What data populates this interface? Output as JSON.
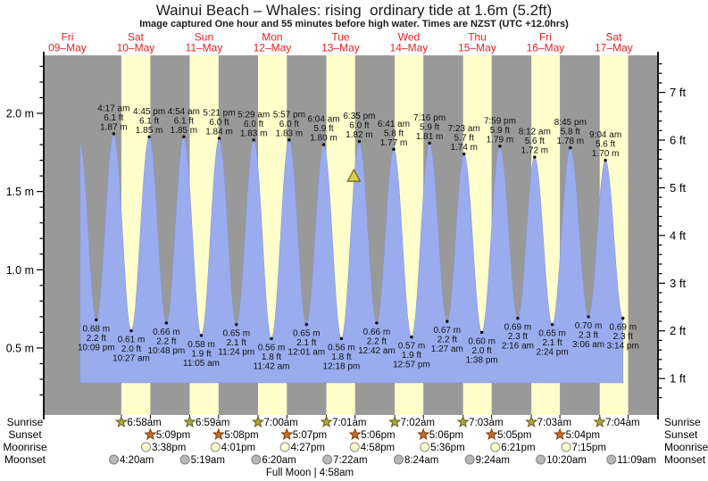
{
  "page": {
    "title": "Wainui Beach – Whales: rising  ordinary tide at 1.6m (5.2ft)",
    "subtitle": "Image captured One hour and 55 minutes before high water. Times are NZST (UTC +12.0hrs)"
  },
  "colors": {
    "plot_background": "#999999",
    "daylight_band": "#ffffcc",
    "tide_fill": "#9aacee",
    "tide_edge": "#8494d0",
    "day_label": "#e62222",
    "text": "#000000",
    "marker_fill": "#ddce4a",
    "marker_stroke": "#6b6414",
    "sunrise_star": "#b0a838",
    "sunrise_star_stroke": "#5f5a1e",
    "sunset_star": "#cc6e22",
    "sunset_star_stroke": "#7a3c10",
    "moonrise_circle": "#ffffcc",
    "moonrise_circle_stroke": "#8a8a8a",
    "moonset_circle": "#b8b8b8",
    "moonset_circle_stroke": "#808080"
  },
  "days": [
    {
      "weekday": "Fri",
      "date": "09–May"
    },
    {
      "weekday": "Sat",
      "date": "10–May"
    },
    {
      "weekday": "Sun",
      "date": "11–May"
    },
    {
      "weekday": "Mon",
      "date": "12–May"
    },
    {
      "weekday": "Tue",
      "date": "13–May"
    },
    {
      "weekday": "Wed",
      "date": "14–May"
    },
    {
      "weekday": "Thu",
      "date": "15–May"
    },
    {
      "weekday": "Fri",
      "date": "16–May"
    },
    {
      "weekday": "Sat",
      "date": "17–May"
    }
  ],
  "chart_data": {
    "type": "area",
    "title": "Wainui Beach – Whales: rising  ordinary tide at 1.6m (5.2ft)",
    "x_axis": {
      "days": 9,
      "first_day": "Fri 09-May",
      "last_day": "Sat 17-May"
    },
    "y_axis_left": {
      "unit": "m",
      "tick_labels": [
        "0.5 m",
        "1.0 m",
        "1.5 m",
        "2.0 m"
      ],
      "major_ticks_m": [
        0.5,
        1.0,
        1.5,
        2.0
      ],
      "minor_step_m": 0.1,
      "range_m": [
        0.07,
        2.37
      ]
    },
    "y_axis_right": {
      "unit": "ft",
      "tick_labels": [
        "1 ft",
        "2 ft",
        "3 ft",
        "4 ft",
        "5 ft",
        "6 ft",
        "7 ft"
      ],
      "major_ticks_ft": [
        1,
        2,
        3,
        4,
        5,
        6,
        7
      ],
      "minor_step_ft": 0.2
    },
    "tide_events": [
      {
        "kind": "high",
        "day": 0,
        "time": "4:30 pm",
        "m": "1.80",
        "ft": "5.9",
        "labeled": false
      },
      {
        "kind": "low",
        "day": 0,
        "time": "10:09 pm",
        "m": "0.68",
        "ft": "2.2"
      },
      {
        "kind": "high",
        "day": 1,
        "time": "4:17 am",
        "m": "1.87",
        "ft": "6.1"
      },
      {
        "kind": "low",
        "day": 1,
        "time": "10:27 am",
        "m": "0.61",
        "ft": "2.0"
      },
      {
        "kind": "high",
        "day": 1,
        "time": "4:45 pm",
        "m": "1.85",
        "ft": "6.1"
      },
      {
        "kind": "low",
        "day": 1,
        "time": "10:48 pm",
        "m": "0.66",
        "ft": "2.2"
      },
      {
        "kind": "high",
        "day": 2,
        "time": "4:54 am",
        "m": "1.85",
        "ft": "6.1"
      },
      {
        "kind": "low",
        "day": 2,
        "time": "11:05 am",
        "m": "0.58",
        "ft": "1.9"
      },
      {
        "kind": "high",
        "day": 2,
        "time": "5:21 pm",
        "m": "1.84",
        "ft": "6.0"
      },
      {
        "kind": "low",
        "day": 2,
        "time": "11:24 pm",
        "m": "0.65",
        "ft": "2.1"
      },
      {
        "kind": "high",
        "day": 3,
        "time": "5:29 am",
        "m": "1.83",
        "ft": "6.0"
      },
      {
        "kind": "low",
        "day": 3,
        "time": "11:42 am",
        "m": "0.56",
        "ft": "1.8"
      },
      {
        "kind": "high",
        "day": 3,
        "time": "5:57 pm",
        "m": "1.83",
        "ft": "6.0"
      },
      {
        "kind": "low",
        "day": 4,
        "time": "12:01 am",
        "m": "0.65",
        "ft": "2.1"
      },
      {
        "kind": "high",
        "day": 4,
        "time": "6:04 am",
        "m": "1.80",
        "ft": "5.9"
      },
      {
        "kind": "low",
        "day": 4,
        "time": "12:18 pm",
        "m": "0.56",
        "ft": "1.8"
      },
      {
        "kind": "high",
        "day": 4,
        "time": "6:35 pm",
        "m": "1.82",
        "ft": "6.0"
      },
      {
        "kind": "low",
        "day": 5,
        "time": "12:42 am",
        "m": "0.66",
        "ft": "2.2"
      },
      {
        "kind": "high",
        "day": 5,
        "time": "6:41 am",
        "m": "1.77",
        "ft": "5.8"
      },
      {
        "kind": "low",
        "day": 5,
        "time": "12:57 pm",
        "m": "0.57",
        "ft": "1.9"
      },
      {
        "kind": "high",
        "day": 5,
        "time": "7:16 pm",
        "m": "1.81",
        "ft": "5.9"
      },
      {
        "kind": "low",
        "day": 6,
        "time": "1:27 am",
        "m": "0.67",
        "ft": "2.2"
      },
      {
        "kind": "high",
        "day": 6,
        "time": "7:23 am",
        "m": "1.74",
        "ft": "5.7"
      },
      {
        "kind": "low",
        "day": 6,
        "time": "1:38 pm",
        "m": "0.60",
        "ft": "2.0"
      },
      {
        "kind": "high",
        "day": 6,
        "time": "7:59 pm",
        "m": "1.79",
        "ft": "5.9"
      },
      {
        "kind": "low",
        "day": 7,
        "time": "2:16 am",
        "m": "0.69",
        "ft": "2.3"
      },
      {
        "kind": "high",
        "day": 7,
        "time": "8:12 am",
        "m": "1.72",
        "ft": "5.6"
      },
      {
        "kind": "low",
        "day": 7,
        "time": "2:24 pm",
        "m": "0.65",
        "ft": "2.1"
      },
      {
        "kind": "high",
        "day": 7,
        "time": "8:45 pm",
        "m": "1.78",
        "ft": "5.8"
      },
      {
        "kind": "low",
        "day": 8,
        "time": "3:06 am",
        "m": "0.70",
        "ft": "2.3"
      },
      {
        "kind": "high",
        "day": 8,
        "time": "9:04 am",
        "m": "1.70",
        "ft": "5.6"
      },
      {
        "kind": "low",
        "day": 8,
        "time": "3:14 pm",
        "m": "0.69",
        "ft": "2.3"
      }
    ],
    "current_marker": {
      "day": 4,
      "time": "4:40 pm",
      "height_m": 1.6
    },
    "daylight_bands": [
      {
        "day": 1,
        "start": "6:58 am",
        "end": "5:09 pm"
      },
      {
        "day": 2,
        "start": "6:59 am",
        "end": "5:08 pm"
      },
      {
        "day": 3,
        "start": "7:00 am",
        "end": "5:07 pm"
      },
      {
        "day": 4,
        "start": "7:01 am",
        "end": "5:06 pm"
      },
      {
        "day": 5,
        "start": "7:02 am",
        "end": "5:06 pm"
      },
      {
        "day": 6,
        "start": "7:03 am",
        "end": "5:05 pm"
      },
      {
        "day": 7,
        "start": "7:03 am",
        "end": "5:04 pm"
      },
      {
        "day": 8,
        "start": "7:04 am",
        "end": "5:03 pm"
      }
    ]
  },
  "astro": {
    "rows": [
      {
        "name": "Sunrise",
        "icon": "sunrise-star-icon",
        "entries": [
          {
            "day": 1,
            "time": "6:58am"
          },
          {
            "day": 2,
            "time": "6:59am"
          },
          {
            "day": 3,
            "time": "7:00am"
          },
          {
            "day": 4,
            "time": "7:01am"
          },
          {
            "day": 5,
            "time": "7:02am"
          },
          {
            "day": 6,
            "time": "7:03am"
          },
          {
            "day": 7,
            "time": "7:03am"
          },
          {
            "day": 8,
            "time": "7:04am"
          }
        ]
      },
      {
        "name": "Sunset",
        "icon": "sunset-star-icon",
        "entries": [
          {
            "day": 1,
            "time": "5:09pm"
          },
          {
            "day": 2,
            "time": "5:08pm"
          },
          {
            "day": 3,
            "time": "5:07pm"
          },
          {
            "day": 4,
            "time": "5:06pm"
          },
          {
            "day": 5,
            "time": "5:06pm"
          },
          {
            "day": 6,
            "time": "5:05pm"
          },
          {
            "day": 7,
            "time": "5:04pm"
          }
        ]
      },
      {
        "name": "Moonrise",
        "icon": "moonrise-circle-icon",
        "entries": [
          {
            "day": 1,
            "time": "3:38pm"
          },
          {
            "day": 2,
            "time": "4:01pm"
          },
          {
            "day": 3,
            "time": "4:27pm"
          },
          {
            "day": 4,
            "time": "4:58pm"
          },
          {
            "day": 5,
            "time": "5:36pm"
          },
          {
            "day": 6,
            "time": "6:21pm"
          },
          {
            "day": 7,
            "time": "7:15pm"
          }
        ]
      },
      {
        "name": "Moonset",
        "icon": "moonset-circle-icon",
        "entries": [
          {
            "day": 1,
            "time": "4:20am"
          },
          {
            "day": 2,
            "time": "5:19am"
          },
          {
            "day": 3,
            "time": "6:20am"
          },
          {
            "day": 4,
            "time": "7:22am"
          },
          {
            "day": 5,
            "time": "8:24am"
          },
          {
            "day": 6,
            "time": "9:24am"
          },
          {
            "day": 7,
            "time": "10:20am"
          },
          {
            "day": 8,
            "time": "11:09am"
          }
        ]
      }
    ],
    "full_moon": {
      "name": "Full Moon",
      "time": "4:58am",
      "day_position": 4.05
    }
  }
}
